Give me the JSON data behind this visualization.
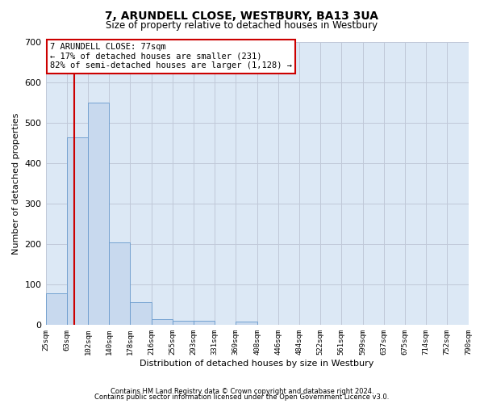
{
  "title": "7, ARUNDELL CLOSE, WESTBURY, BA13 3UA",
  "subtitle": "Size of property relative to detached houses in Westbury",
  "xlabel": "Distribution of detached houses by size in Westbury",
  "ylabel": "Number of detached properties",
  "bar_color": "#c8d9ee",
  "bar_edge_color": "#6699cc",
  "grid_color": "#c0c8d8",
  "bg_color": "#dce8f5",
  "bin_labels": [
    "25sqm",
    "63sqm",
    "102sqm",
    "140sqm",
    "178sqm",
    "216sqm",
    "255sqm",
    "293sqm",
    "331sqm",
    "369sqm",
    "408sqm",
    "446sqm",
    "484sqm",
    "522sqm",
    "561sqm",
    "599sqm",
    "637sqm",
    "675sqm",
    "714sqm",
    "752sqm",
    "790sqm"
  ],
  "bar_heights": [
    78,
    463,
    550,
    204,
    57,
    15,
    10,
    10,
    0,
    8,
    0,
    0,
    0,
    0,
    0,
    0,
    0,
    0,
    0,
    0
  ],
  "ylim": [
    0,
    700
  ],
  "yticks": [
    0,
    100,
    200,
    300,
    400,
    500,
    600,
    700
  ],
  "property_label": "7 ARUNDELL CLOSE: 77sqm",
  "annotation_line1": "← 17% of detached houses are smaller (231)",
  "annotation_line2": "82% of semi-detached houses are larger (1,128) →",
  "red_line_x": 1.359,
  "footnote1": "Contains HM Land Registry data © Crown copyright and database right 2024.",
  "footnote2": "Contains public sector information licensed under the Open Government Licence v3.0.",
  "annotation_box_color": "#cc0000",
  "red_line_color": "#cc0000",
  "title_fontsize": 10,
  "subtitle_fontsize": 8.5,
  "ylabel_fontsize": 8,
  "xlabel_fontsize": 8,
  "ytick_fontsize": 8,
  "xtick_fontsize": 6.5,
  "annot_fontsize": 7.5,
  "footnote_fontsize": 6
}
